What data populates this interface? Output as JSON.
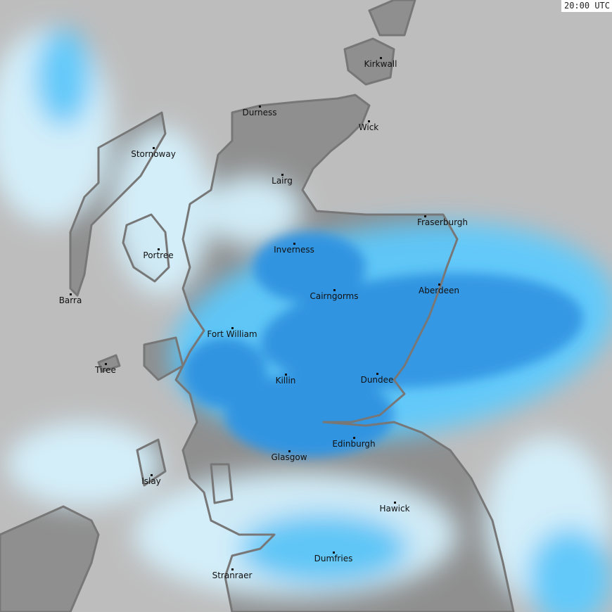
{
  "timestamp": "20:00 UTC",
  "colors": {
    "sea": "#bdbdbd",
    "land": "#8f8f8f",
    "coastline": "#777777",
    "precip_heavy": "#2a95e8",
    "precip_moderate": "#5ccbff",
    "precip_light": "#d6f3ff"
  },
  "cities": [
    {
      "name": "Kirkwall"
    },
    {
      "name": "Durness"
    },
    {
      "name": "Wick"
    },
    {
      "name": "Stornoway"
    },
    {
      "name": "Lairg"
    },
    {
      "name": "Fraserburgh"
    },
    {
      "name": "Inverness"
    },
    {
      "name": "Portree"
    },
    {
      "name": "Aberdeen"
    },
    {
      "name": "Cairngorms"
    },
    {
      "name": "Barra"
    },
    {
      "name": "Fort William"
    },
    {
      "name": "Tiree"
    },
    {
      "name": "Dundee"
    },
    {
      "name": "Killin"
    },
    {
      "name": "Edinburgh"
    },
    {
      "name": "Glasgow"
    },
    {
      "name": "Islay"
    },
    {
      "name": "Hawick"
    },
    {
      "name": "Dumfries"
    },
    {
      "name": "Stranraer"
    }
  ]
}
